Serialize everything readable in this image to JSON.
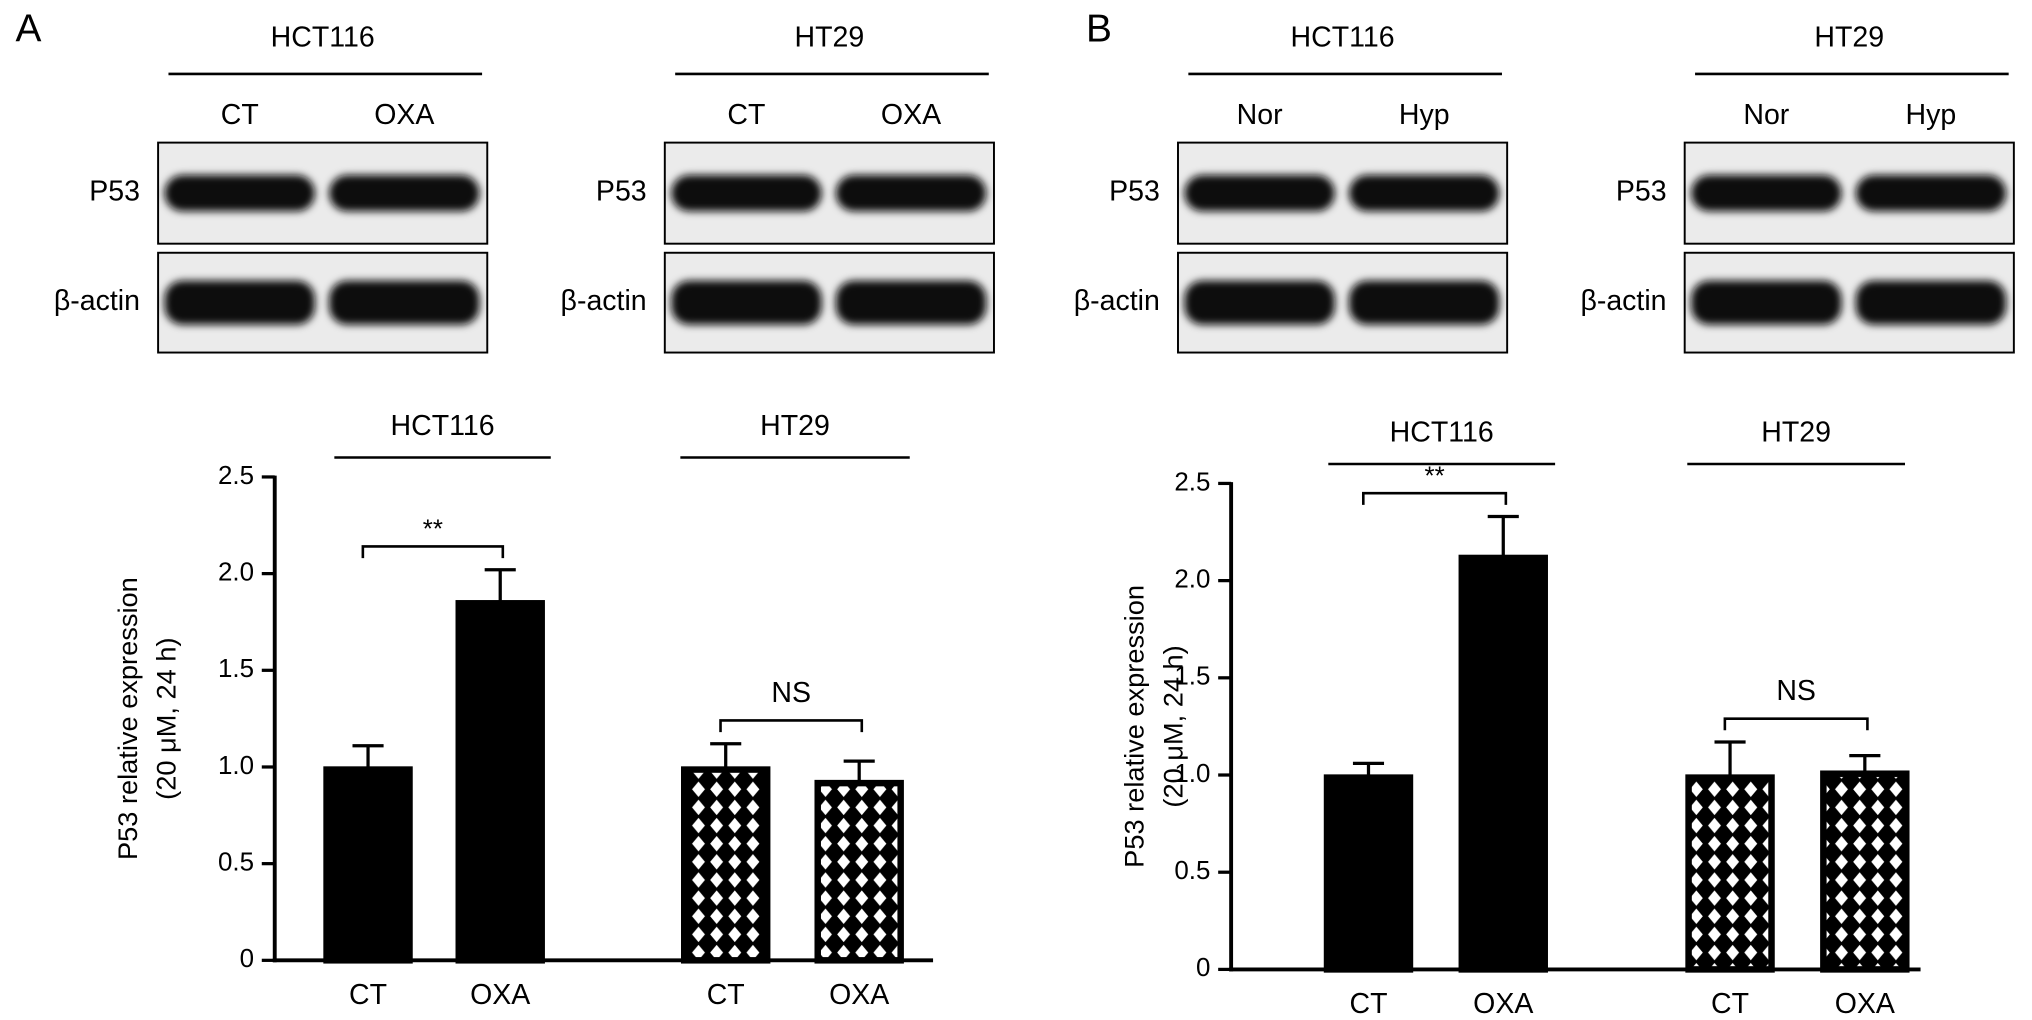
{
  "panels": [
    {
      "label": "A",
      "blots": [
        {
          "cell": "HCT116",
          "lanes": [
            "CT",
            "OXA"
          ],
          "rows": [
            "P53",
            "β-actin"
          ]
        },
        {
          "cell": "HT29",
          "lanes": [
            "CT",
            "OXA"
          ],
          "rows": [
            "P53",
            "β-actin"
          ]
        }
      ]
    },
    {
      "label": "B",
      "blots": [
        {
          "cell": "HCT116",
          "lanes": [
            "Nor",
            "Hyp"
          ],
          "rows": [
            "P53",
            "β-actin"
          ]
        },
        {
          "cell": "HT29",
          "lanes": [
            "Nor",
            "Hyp"
          ],
          "rows": [
            "P53",
            "β-actin"
          ]
        }
      ]
    }
  ],
  "chart_data": [
    {
      "type": "bar",
      "ylabel": [
        "P53 relative expression",
        "(20 μM, 24 h)"
      ],
      "ylim": [
        0,
        2.5
      ],
      "yticks": [
        0,
        0.5,
        {
          "value": 1,
          "label": "1.0"
        },
        1.5,
        {
          "value": 2,
          "label": "2.0"
        },
        2.5
      ],
      "groups": [
        {
          "name": "HCT116",
          "categories": [
            "CT",
            "OXA"
          ],
          "values": [
            1.0,
            1.86
          ],
          "errors": [
            0.11,
            0.16
          ],
          "fill": "solid",
          "annotation": "**"
        },
        {
          "name": "HT29",
          "categories": [
            "CT",
            "OXA"
          ],
          "values": [
            1.0,
            0.93
          ],
          "errors": [
            0.12,
            0.1
          ],
          "fill": "diamond",
          "annotation": "NS"
        }
      ]
    },
    {
      "type": "bar",
      "ylabel": [
        "P53 relative expression",
        "(20 μM, 24 h)"
      ],
      "ylim": [
        0,
        2.5
      ],
      "yticks": [
        0,
        0.5,
        {
          "value": 1,
          "label": "1.0"
        },
        1.5,
        {
          "value": 2,
          "label": "2.0"
        },
        2.5
      ],
      "groups": [
        {
          "name": "HCT116",
          "categories": [
            "CT",
            "OXA"
          ],
          "values": [
            1.0,
            2.13
          ],
          "errors": [
            0.06,
            0.2
          ],
          "fill": "solid",
          "annotation": "**"
        },
        {
          "name": "HT29",
          "categories": [
            "CT",
            "OXA"
          ],
          "values": [
            1.0,
            1.02
          ],
          "errors": [
            0.17,
            0.08
          ],
          "fill": "diamond",
          "annotation": "NS"
        }
      ]
    }
  ]
}
